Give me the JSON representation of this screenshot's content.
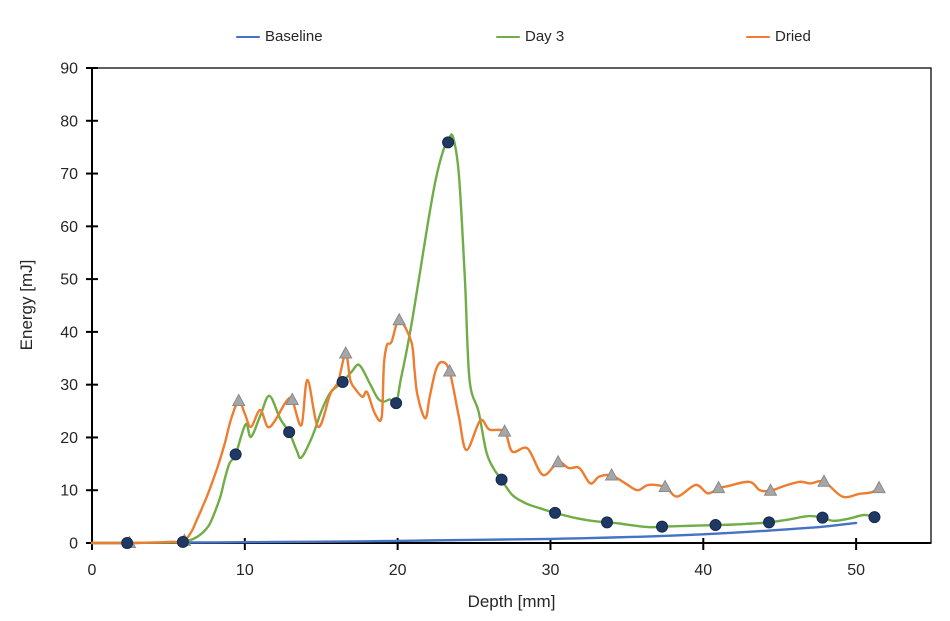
{
  "chart_data": {
    "type": "line",
    "title": "",
    "xlabel": "Depth [mm]",
    "ylabel": "Energy [mJ]",
    "grid": false,
    "legend_position": "top",
    "x_axis": {
      "min": 0,
      "max": 54.9,
      "ticks": [
        0,
        10,
        20,
        30,
        40,
        50
      ]
    },
    "y_axis": {
      "min": 0,
      "max": 90,
      "ticks": [
        0,
        10,
        20,
        30,
        40,
        50,
        60,
        70,
        80,
        90
      ]
    },
    "style": {
      "axis_color": "#000000",
      "border_color": "#1a1a1a",
      "text_color": "#262626",
      "background": "#ffffff"
    },
    "series": [
      {
        "name": "Baseline",
        "color": "#4472C4",
        "marker": "none",
        "points": [
          [
            0,
            0
          ],
          [
            2.3,
            0
          ],
          [
            4,
            0.05
          ],
          [
            6,
            0.1
          ],
          [
            8,
            0.12
          ],
          [
            10,
            0.15
          ],
          [
            12,
            0.18
          ],
          [
            14,
            0.22
          ],
          [
            16,
            0.27
          ],
          [
            18,
            0.33
          ],
          [
            20,
            0.4
          ],
          [
            22,
            0.48
          ],
          [
            24,
            0.55
          ],
          [
            26,
            0.62
          ],
          [
            28,
            0.7
          ],
          [
            30,
            0.78
          ],
          [
            32,
            0.9
          ],
          [
            34,
            1.05
          ],
          [
            36,
            1.2
          ],
          [
            38,
            1.4
          ],
          [
            40,
            1.65
          ],
          [
            42,
            1.95
          ],
          [
            44,
            2.3
          ],
          [
            46,
            2.7
          ],
          [
            47.5,
            3.0
          ],
          [
            48.8,
            3.4
          ],
          [
            50,
            3.8
          ]
        ],
        "marker_points": []
      },
      {
        "name": "Day 3",
        "color": "#70AD47",
        "marker": "circle",
        "marker_color": "#1F3864",
        "marker_stroke": "#16294d",
        "points": [
          [
            0,
            0
          ],
          [
            1,
            0
          ],
          [
            2.3,
            0
          ],
          [
            3.5,
            0.05
          ],
          [
            5,
            0.1
          ],
          [
            6,
            0.2
          ],
          [
            6.9,
            1.2
          ],
          [
            7.6,
            3.1
          ],
          [
            8,
            5.6
          ],
          [
            8.4,
            8.8
          ],
          [
            8.7,
            12.3
          ],
          [
            9,
            15.1
          ],
          [
            9.4,
            16.8
          ],
          [
            10.05,
            22.5
          ],
          [
            10.4,
            20.1
          ],
          [
            11,
            24
          ],
          [
            11.6,
            27.9
          ],
          [
            12.3,
            23.6
          ],
          [
            12.9,
            21
          ],
          [
            13.4,
            17.5
          ],
          [
            13.7,
            16.2
          ],
          [
            14.4,
            20.1
          ],
          [
            15,
            24.9
          ],
          [
            15.6,
            28.5
          ],
          [
            16.4,
            30.5
          ],
          [
            17,
            32.5
          ],
          [
            17.5,
            33.7
          ],
          [
            18.2,
            30.1
          ],
          [
            18.7,
            27.4
          ],
          [
            19.1,
            26.8
          ],
          [
            19.5,
            27.2
          ],
          [
            19.9,
            26.5
          ],
          [
            20.2,
            30.9
          ],
          [
            20.6,
            36.6
          ],
          [
            21,
            43
          ],
          [
            21.5,
            52
          ],
          [
            22,
            61
          ],
          [
            22.5,
            69
          ],
          [
            23,
            74.5
          ],
          [
            23.3,
            75.9
          ],
          [
            23.6,
            77.1
          ],
          [
            24,
            70
          ],
          [
            24.4,
            50
          ],
          [
            24.7,
            31
          ],
          [
            25.3,
            24.9
          ],
          [
            25.8,
            17.3
          ],
          [
            26.3,
            14
          ],
          [
            26.8,
            12
          ],
          [
            27.5,
            9.1
          ],
          [
            28.4,
            7.5
          ],
          [
            29.3,
            6.6
          ],
          [
            30.3,
            5.7
          ],
          [
            31.7,
            4.7
          ],
          [
            32.7,
            4.2
          ],
          [
            33.7,
            3.9
          ],
          [
            34.5,
            3.7
          ],
          [
            35.5,
            3.3
          ],
          [
            36.5,
            3.0
          ],
          [
            37.3,
            3.1
          ],
          [
            38.5,
            3.2
          ],
          [
            39.6,
            3.3
          ],
          [
            40.8,
            3.4
          ],
          [
            42,
            3.5
          ],
          [
            43.2,
            3.7
          ],
          [
            44.3,
            3.9
          ],
          [
            45.5,
            4.4
          ],
          [
            46.9,
            5.1
          ],
          [
            47.8,
            4.8
          ],
          [
            48.5,
            4.2
          ],
          [
            49.5,
            4.6
          ],
          [
            50.5,
            5.3
          ],
          [
            51.2,
            4.9
          ]
        ],
        "marker_points": [
          [
            2.3,
            0
          ],
          [
            5.95,
            0.2
          ],
          [
            9.4,
            16.8
          ],
          [
            12.9,
            21
          ],
          [
            16.4,
            30.5
          ],
          [
            19.9,
            26.5
          ],
          [
            23.3,
            75.9
          ],
          [
            26.8,
            12
          ],
          [
            30.3,
            5.7
          ],
          [
            33.7,
            3.9
          ],
          [
            37.3,
            3.1
          ],
          [
            40.8,
            3.4
          ],
          [
            44.3,
            3.9
          ],
          [
            47.8,
            4.8
          ],
          [
            51.2,
            4.9
          ]
        ]
      },
      {
        "name": "Dried",
        "color": "#ED7D31",
        "marker": "triangle",
        "marker_color": "#A6A6A6",
        "marker_stroke": "#8a8a8a",
        "points": [
          [
            0,
            0
          ],
          [
            1,
            0
          ],
          [
            2.4,
            0
          ],
          [
            3.5,
            0.05
          ],
          [
            5,
            0.2
          ],
          [
            6,
            0.4
          ],
          [
            6.5,
            2.1
          ],
          [
            6.8,
            4
          ],
          [
            7.15,
            6.3
          ],
          [
            7.6,
            9.4
          ],
          [
            8,
            12.6
          ],
          [
            8.3,
            15.1
          ],
          [
            8.7,
            19
          ],
          [
            9.1,
            23.5
          ],
          [
            9.6,
            26.9
          ],
          [
            10,
            24.5
          ],
          [
            10.4,
            22
          ],
          [
            11,
            25.2
          ],
          [
            11.5,
            22
          ],
          [
            12,
            23.3
          ],
          [
            12.7,
            26.8
          ],
          [
            13.1,
            27.1
          ],
          [
            13.7,
            22.3
          ],
          [
            14.1,
            30.9
          ],
          [
            14.8,
            22
          ],
          [
            15.6,
            28.3
          ],
          [
            16.1,
            30.5
          ],
          [
            16.6,
            35.9
          ],
          [
            16.9,
            30.9
          ],
          [
            17.2,
            29.3
          ],
          [
            17.7,
            27.7
          ],
          [
            18,
            28.6
          ],
          [
            18.5,
            24.6
          ],
          [
            18.95,
            23.8
          ],
          [
            19.1,
            33.8
          ],
          [
            19.3,
            37.5
          ],
          [
            19.6,
            38.1
          ],
          [
            20.1,
            42.2
          ],
          [
            20.9,
            38.1
          ],
          [
            21.1,
            32.8
          ],
          [
            21.3,
            28
          ],
          [
            21.8,
            23.6
          ],
          [
            22.1,
            27.7
          ],
          [
            22.5,
            32.8
          ],
          [
            22.9,
            34.3
          ],
          [
            23.4,
            32.5
          ],
          [
            24,
            24
          ],
          [
            24.5,
            17.6
          ],
          [
            25.4,
            23.2
          ],
          [
            26,
            21.5
          ],
          [
            27,
            21.1
          ],
          [
            27.5,
            17.3
          ],
          [
            28.5,
            17.9
          ],
          [
            29.5,
            12.9
          ],
          [
            30.5,
            15.3
          ],
          [
            31.2,
            14.2
          ],
          [
            31.9,
            14.2
          ],
          [
            32.6,
            11.3
          ],
          [
            33.2,
            12.6
          ],
          [
            34,
            12.8
          ],
          [
            34.9,
            11.3
          ],
          [
            35.7,
            10.0
          ],
          [
            36.4,
            11
          ],
          [
            37.5,
            10.6
          ],
          [
            38.3,
            8.8
          ],
          [
            39.5,
            11
          ],
          [
            40.3,
            9.4
          ],
          [
            41,
            10.4
          ],
          [
            41.5,
            10.7
          ],
          [
            43,
            11.6
          ],
          [
            43.7,
            10
          ],
          [
            44.4,
            9.9
          ],
          [
            45.2,
            10.7
          ],
          [
            46.3,
            11.6
          ],
          [
            47,
            11.3
          ],
          [
            47.9,
            11.6
          ],
          [
            49.1,
            8.8
          ],
          [
            50.2,
            9.3
          ],
          [
            51,
            9.6
          ],
          [
            51.5,
            10.4
          ]
        ],
        "marker_points": [
          [
            2.45,
            0
          ],
          [
            6.05,
            0.4
          ],
          [
            9.6,
            26.9
          ],
          [
            13.1,
            27.1
          ],
          [
            16.6,
            35.9
          ],
          [
            20.1,
            42.2
          ],
          [
            23.4,
            32.5
          ],
          [
            27,
            21.1
          ],
          [
            30.5,
            15.3
          ],
          [
            34,
            12.8
          ],
          [
            37.5,
            10.6
          ],
          [
            41,
            10.4
          ],
          [
            44.4,
            9.9
          ],
          [
            47.9,
            11.6
          ],
          [
            51.5,
            10.4
          ]
        ]
      }
    ]
  }
}
